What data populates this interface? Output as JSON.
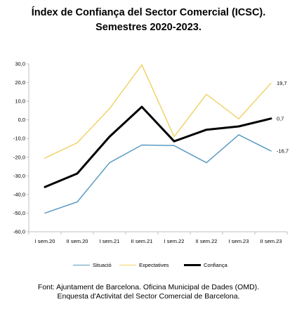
{
  "title_line1": "Índex de Confiança del Sector Comercial (ICSC).",
  "title_line2": "Semestres 2020-2023.",
  "source_line1": "Font: Ajuntament de Barcelona. Oficina Municipal de Dades (OMD).",
  "source_line2": "Enquesta d'Activitat del Sector Comercial de Barcelona.",
  "chart_data": {
    "type": "line",
    "categories": [
      "I sem.20",
      "II sem.20",
      "I sem.21",
      "II sem.21",
      "I sem.22",
      "II sem.22",
      "I sem.23",
      "II sem.23"
    ],
    "series": [
      {
        "name": "Situació",
        "color": "#5b9bc3",
        "width": 1.5,
        "values": [
          -50.0,
          -44.0,
          -23.0,
          -13.5,
          -13.8,
          -23.0,
          -8.0,
          -16.7
        ]
      },
      {
        "name": "Expectatives",
        "color": "#f0d36b",
        "width": 1.5,
        "values": [
          -20.5,
          -12.3,
          6.0,
          29.5,
          -9.0,
          13.7,
          0.5,
          19.7
        ]
      },
      {
        "name": "Confiança",
        "color": "#000000",
        "width": 3,
        "values": [
          -36.0,
          -28.8,
          -9.0,
          7.0,
          -11.5,
          -5.3,
          -3.5,
          0.7
        ]
      }
    ],
    "end_labels": [
      "-16,7",
      "19,7",
      "0,7"
    ],
    "ylim": [
      -60,
      30
    ],
    "yticks": [
      "-60,0",
      "-50,0",
      "-40,0",
      "-30,0",
      "-20,0",
      "-10,0",
      "0,0",
      "10,0",
      "20,0",
      "30,0"
    ],
    "xlabel": "",
    "ylabel": "",
    "grid": false,
    "legend_position": "bottom"
  }
}
